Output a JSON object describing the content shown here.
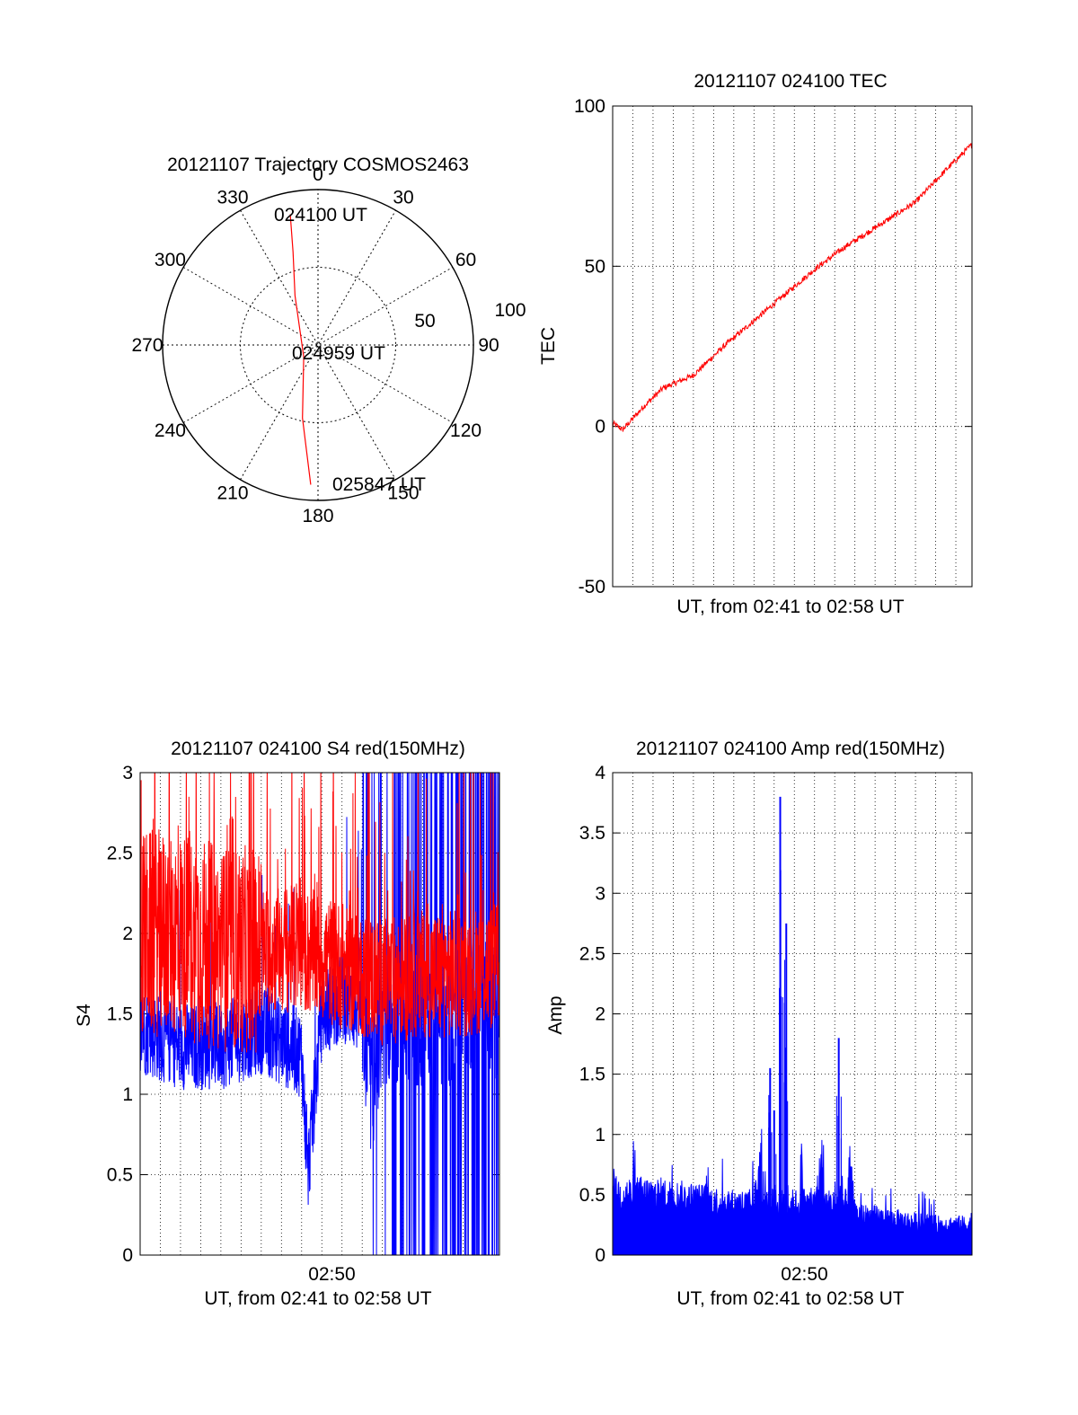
{
  "colors": {
    "red": "#ff0000",
    "blue": "#0000ff",
    "axis": "#000000",
    "grid": "#000000"
  },
  "chart_data": [
    {
      "type": "polar",
      "title": "20121107 Trajectory COSMOS2463",
      "azimuth_labels": [
        "0",
        "30",
        "60",
        "90",
        "120",
        "150",
        "180",
        "210",
        "240",
        "270",
        "300",
        "330"
      ],
      "radius_labels": [
        "50",
        "100"
      ],
      "rlim": [
        0,
        100
      ],
      "series": [
        {
          "color": "red",
          "points": [
            {
              "az": 348,
              "r": 86
            },
            {
              "az": 345,
              "r": 62
            },
            {
              "az": 335,
              "r": 35
            },
            {
              "az": 230,
              "r": 12
            },
            {
              "az": 192,
              "r": 48
            },
            {
              "az": 183,
              "r": 90
            }
          ]
        }
      ],
      "annotations": [
        "024100 UT",
        "024959 UT",
        "025847 UT"
      ]
    },
    {
      "type": "line",
      "title": "20121107 024100 TEC",
      "xlabel": "UT, from 02:41 to 02:58 UT",
      "ylabel": "TEC",
      "xlim_minutes": [
        0,
        17.8
      ],
      "ylim": [
        -50,
        100
      ],
      "yticks": [
        "-50",
        "0",
        "50",
        "100"
      ],
      "grid": true,
      "series": [
        {
          "color": "red",
          "x_minutes": [
            0,
            0.5,
            1.5,
            2.5,
            4,
            5.5,
            7,
            8.5,
            10,
            11.5,
            13,
            15,
            16.5,
            17.8
          ],
          "values": [
            1,
            -1,
            6,
            12,
            16,
            25,
            33,
            41,
            49,
            56,
            62,
            70,
            80,
            88
          ]
        }
      ]
    },
    {
      "type": "line",
      "title": "20121107 024100 S4 red(150MHz)",
      "xlabel": "UT, from 02:41 to 02:58 UT",
      "ylabel": "S4",
      "xlim_minutes": [
        0,
        17.8
      ],
      "ylim": [
        0,
        3
      ],
      "yticks": [
        "0",
        "0.5",
        "1",
        "1.5",
        "2",
        "2.5",
        "3"
      ],
      "xticks": [
        {
          "minute": 9.5,
          "label": "02:50"
        }
      ],
      "grid": true,
      "series": [
        {
          "color": "blue",
          "note": "dense noisy trace",
          "x_minutes": [
            0,
            2,
            4,
            6,
            8,
            8.3,
            9,
            10,
            11,
            11.5,
            12,
            13,
            14,
            15,
            16,
            17.8
          ],
          "values": [
            1.4,
            1.3,
            1.3,
            1.4,
            1.25,
            0.5,
            1.5,
            1.6,
            1.5,
            1.0,
            1.5,
            1.5,
            1.5,
            1.5,
            1.5,
            1.5
          ]
        },
        {
          "color": "red",
          "note": "dense noisy trace",
          "x_minutes": [
            0,
            2,
            4,
            6,
            8,
            10,
            12,
            14,
            16,
            17.8
          ],
          "values": [
            2.0,
            2.0,
            1.9,
            1.9,
            1.9,
            1.8,
            1.7,
            1.75,
            1.75,
            1.8
          ]
        }
      ]
    },
    {
      "type": "bar",
      "title": "20121107 024100 Amp red(150MHz)",
      "xlabel": "UT, from 02:41 to 02:58 UT",
      "ylabel": "Amp",
      "xlim_minutes": [
        0,
        17.8
      ],
      "ylim": [
        0,
        4
      ],
      "yticks": [
        "0",
        "0.5",
        "1",
        "1.5",
        "2",
        "2.5",
        "3",
        "3.5",
        "4"
      ],
      "xticks": [
        {
          "minute": 9.5,
          "label": "02:50"
        }
      ],
      "grid": true,
      "series": [
        {
          "color": "blue",
          "note": "dense noisy spikes",
          "x_minutes": [
            0,
            2,
            4,
            6,
            7.0,
            7.8,
            8.0,
            8.3,
            8.6,
            9.5,
            10,
            11.2,
            12,
            14,
            16,
            17.8
          ],
          "values": [
            0.6,
            0.6,
            0.55,
            0.5,
            0.5,
            1.55,
            1.2,
            3.8,
            2.75,
            0.5,
            0.5,
            1.8,
            0.4,
            0.35,
            0.3,
            0.3
          ]
        }
      ]
    }
  ]
}
